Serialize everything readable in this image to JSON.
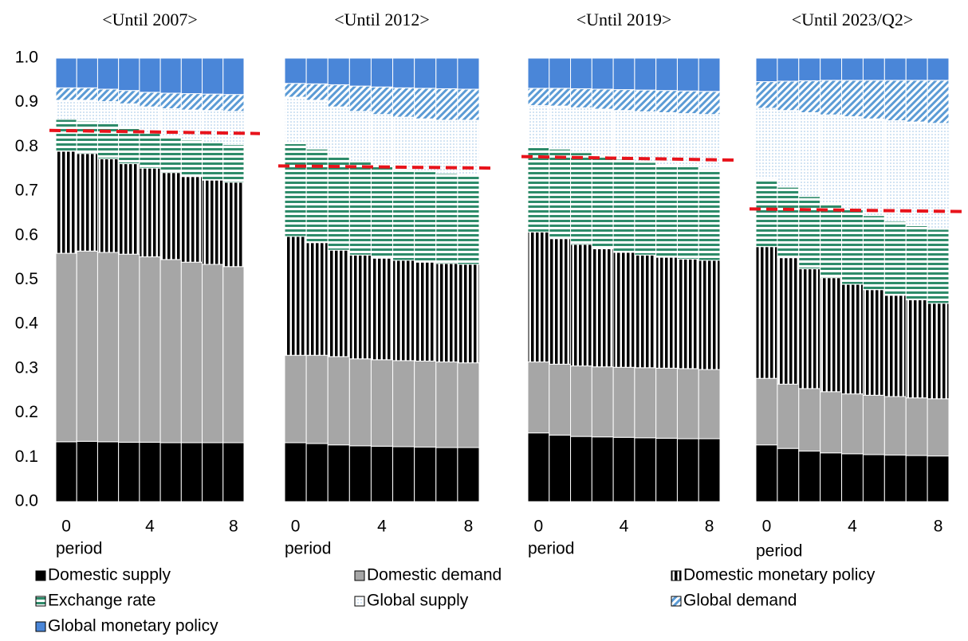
{
  "chart_data": [
    {
      "type": "bar",
      "stacked": true,
      "title": "<Until 2007>",
      "x_label": "period",
      "categories": [
        0,
        null,
        null,
        null,
        4,
        null,
        null,
        null,
        8
      ],
      "ylim": [
        0,
        1
      ],
      "yticks": [
        {
          "value": 0,
          "label": "0.0"
        },
        0.1,
        0.2,
        0.3,
        0.4,
        0.5,
        0.6,
        0.7,
        0.8,
        0.9,
        {
          "value": 1,
          "label": "1.0"
        }
      ],
      "reference_line": [
        0.837,
        0.83
      ],
      "reference_color": "#e8131b",
      "series": [
        {
          "name": "Domestic supply",
          "color": "#000000",
          "pattern": "solid",
          "values": [
            0.135,
            0.136,
            0.135,
            0.134,
            0.134,
            0.133,
            0.133,
            0.133,
            0.133
          ]
        },
        {
          "name": "Domestic demand",
          "color": "#a6a6a6",
          "pattern": "solid",
          "values": [
            0.425,
            0.429,
            0.427,
            0.424,
            0.418,
            0.413,
            0.407,
            0.402,
            0.397
          ]
        },
        {
          "name": "Domestic monetary policy",
          "color": "#000000",
          "pattern": "vertical-stripes",
          "values": [
            0.23,
            0.22,
            0.211,
            0.204,
            0.2,
            0.196,
            0.193,
            0.19,
            0.19
          ]
        },
        {
          "name": "Exchange rate",
          "color": "#2e8b6a",
          "pattern": "horizontal-stripes",
          "values": [
            0.072,
            0.073,
            0.079,
            0.081,
            0.081,
            0.081,
            0.082,
            0.085,
            0.085
          ]
        },
        {
          "name": "Global supply",
          "color": "#9dc3e6",
          "pattern": "dots",
          "values": [
            0.043,
            0.047,
            0.05,
            0.054,
            0.057,
            0.063,
            0.068,
            0.072,
            0.075
          ]
        },
        {
          "name": "Global demand",
          "color": "#5b9bd5",
          "pattern": "diagonal-stripes",
          "values": [
            0.028,
            0.028,
            0.028,
            0.03,
            0.033,
            0.035,
            0.037,
            0.037,
            0.038
          ]
        },
        {
          "name": "Global monetary policy",
          "color": "#4a86d8",
          "pattern": "solid",
          "values": [
            0.067,
            0.067,
            0.07,
            0.073,
            0.077,
            0.079,
            0.08,
            0.081,
            0.082
          ]
        }
      ]
    },
    {
      "type": "bar",
      "stacked": true,
      "title": "<Until 2012>",
      "x_label": "period",
      "categories": [
        0,
        null,
        null,
        null,
        4,
        null,
        null,
        null,
        8
      ],
      "ylim": [
        0,
        1
      ],
      "reference_line": [
        0.757,
        0.752
      ],
      "reference_color": "#e8131b",
      "series": [
        {
          "name": "Domestic supply",
          "color": "#000000",
          "pattern": "solid",
          "values": [
            0.133,
            0.131,
            0.128,
            0.126,
            0.125,
            0.124,
            0.123,
            0.122,
            0.122
          ]
        },
        {
          "name": "Domestic demand",
          "color": "#a6a6a6",
          "pattern": "solid",
          "values": [
            0.197,
            0.199,
            0.199,
            0.196,
            0.195,
            0.194,
            0.194,
            0.193,
            0.191
          ]
        },
        {
          "name": "Domestic monetary policy",
          "color": "#000000",
          "pattern": "vertical-stripes",
          "values": [
            0.268,
            0.254,
            0.24,
            0.234,
            0.229,
            0.226,
            0.223,
            0.222,
            0.222
          ]
        },
        {
          "name": "Exchange rate",
          "color": "#2e8b6a",
          "pattern": "horizontal-stripes",
          "values": [
            0.209,
            0.211,
            0.214,
            0.212,
            0.209,
            0.206,
            0.204,
            0.203,
            0.201
          ]
        },
        {
          "name": "Global supply",
          "color": "#9dc3e6",
          "pattern": "dots",
          "values": [
            0.105,
            0.11,
            0.109,
            0.112,
            0.115,
            0.117,
            0.119,
            0.12,
            0.124
          ]
        },
        {
          "name": "Global demand",
          "color": "#5b9bd5",
          "pattern": "diagonal-stripes",
          "values": [
            0.031,
            0.037,
            0.05,
            0.057,
            0.062,
            0.066,
            0.069,
            0.071,
            0.07
          ]
        },
        {
          "name": "Global monetary policy",
          "color": "#4a86d8",
          "pattern": "solid",
          "values": [
            0.057,
            0.058,
            0.06,
            0.063,
            0.065,
            0.067,
            0.068,
            0.069,
            0.07
          ]
        }
      ]
    },
    {
      "type": "bar",
      "stacked": true,
      "title": "<Until 2019>",
      "x_label": "period",
      "categories": [
        0,
        null,
        null,
        null,
        4,
        null,
        null,
        null,
        8
      ],
      "ylim": [
        0,
        1
      ],
      "reference_line": [
        0.778,
        0.77
      ],
      "reference_color": "#e8131b",
      "series": [
        {
          "name": "Domestic supply",
          "color": "#000000",
          "pattern": "solid",
          "values": [
            0.155,
            0.15,
            0.147,
            0.146,
            0.145,
            0.144,
            0.143,
            0.142,
            0.142
          ]
        },
        {
          "name": "Domestic demand",
          "color": "#a6a6a6",
          "pattern": "solid",
          "values": [
            0.16,
            0.16,
            0.159,
            0.158,
            0.158,
            0.158,
            0.158,
            0.158,
            0.156
          ]
        },
        {
          "name": "Domestic monetary policy",
          "color": "#000000",
          "pattern": "vertical-stripes",
          "values": [
            0.293,
            0.283,
            0.274,
            0.266,
            0.259,
            0.254,
            0.25,
            0.247,
            0.246
          ]
        },
        {
          "name": "Exchange rate",
          "color": "#2e8b6a",
          "pattern": "horizontal-stripes",
          "values": [
            0.192,
            0.202,
            0.207,
            0.209,
            0.21,
            0.209,
            0.208,
            0.208,
            0.206
          ]
        },
        {
          "name": "Global supply",
          "color": "#9dc3e6",
          "pattern": "dots",
          "values": [
            0.093,
            0.097,
            0.101,
            0.106,
            0.11,
            0.114,
            0.118,
            0.12,
            0.123
          ]
        },
        {
          "name": "Global demand",
          "color": "#5b9bd5",
          "pattern": "diagonal-stripes",
          "values": [
            0.039,
            0.04,
            0.043,
            0.045,
            0.047,
            0.049,
            0.05,
            0.051,
            0.052
          ]
        },
        {
          "name": "Global monetary policy",
          "color": "#4a86d8",
          "pattern": "solid",
          "values": [
            0.068,
            0.068,
            0.069,
            0.07,
            0.071,
            0.072,
            0.073,
            0.074,
            0.075
          ]
        }
      ]
    },
    {
      "type": "bar",
      "stacked": true,
      "title": "<Until 2023/Q2>",
      "x_label": "period",
      "categories": [
        0,
        null,
        null,
        null,
        4,
        null,
        null,
        null,
        8
      ],
      "ylim": [
        0,
        1
      ],
      "reference_line": [
        0.66,
        0.654
      ],
      "reference_color": "#e8131b",
      "series": [
        {
          "name": "Domestic supply",
          "color": "#000000",
          "pattern": "solid",
          "values": [
            0.128,
            0.12,
            0.114,
            0.11,
            0.108,
            0.106,
            0.105,
            0.104,
            0.103
          ]
        },
        {
          "name": "Domestic demand",
          "color": "#a6a6a6",
          "pattern": "solid",
          "values": [
            0.15,
            0.145,
            0.141,
            0.138,
            0.135,
            0.134,
            0.132,
            0.13,
            0.129
          ]
        },
        {
          "name": "Domestic monetary policy",
          "color": "#000000",
          "pattern": "vertical-stripes",
          "values": [
            0.297,
            0.285,
            0.27,
            0.257,
            0.247,
            0.238,
            0.228,
            0.221,
            0.215
          ]
        },
        {
          "name": "Exchange rate",
          "color": "#2e8b6a",
          "pattern": "horizontal-stripes",
          "values": [
            0.152,
            0.159,
            0.163,
            0.167,
            0.17,
            0.167,
            0.167,
            0.167,
            0.167
          ]
        },
        {
          "name": "Global supply",
          "color": "#9dc3e6",
          "pattern": "dots",
          "values": [
            0.16,
            0.173,
            0.189,
            0.2,
            0.208,
            0.218,
            0.227,
            0.234,
            0.239
          ]
        },
        {
          "name": "Global demand",
          "color": "#5b9bd5",
          "pattern": "diagonal-stripes",
          "values": [
            0.06,
            0.066,
            0.072,
            0.078,
            0.082,
            0.087,
            0.091,
            0.094,
            0.097
          ]
        },
        {
          "name": "Global monetary policy",
          "color": "#4a86d8",
          "pattern": "solid",
          "values": [
            0.053,
            0.052,
            0.051,
            0.05,
            0.05,
            0.05,
            0.05,
            0.05,
            0.05
          ]
        }
      ]
    }
  ]
}
